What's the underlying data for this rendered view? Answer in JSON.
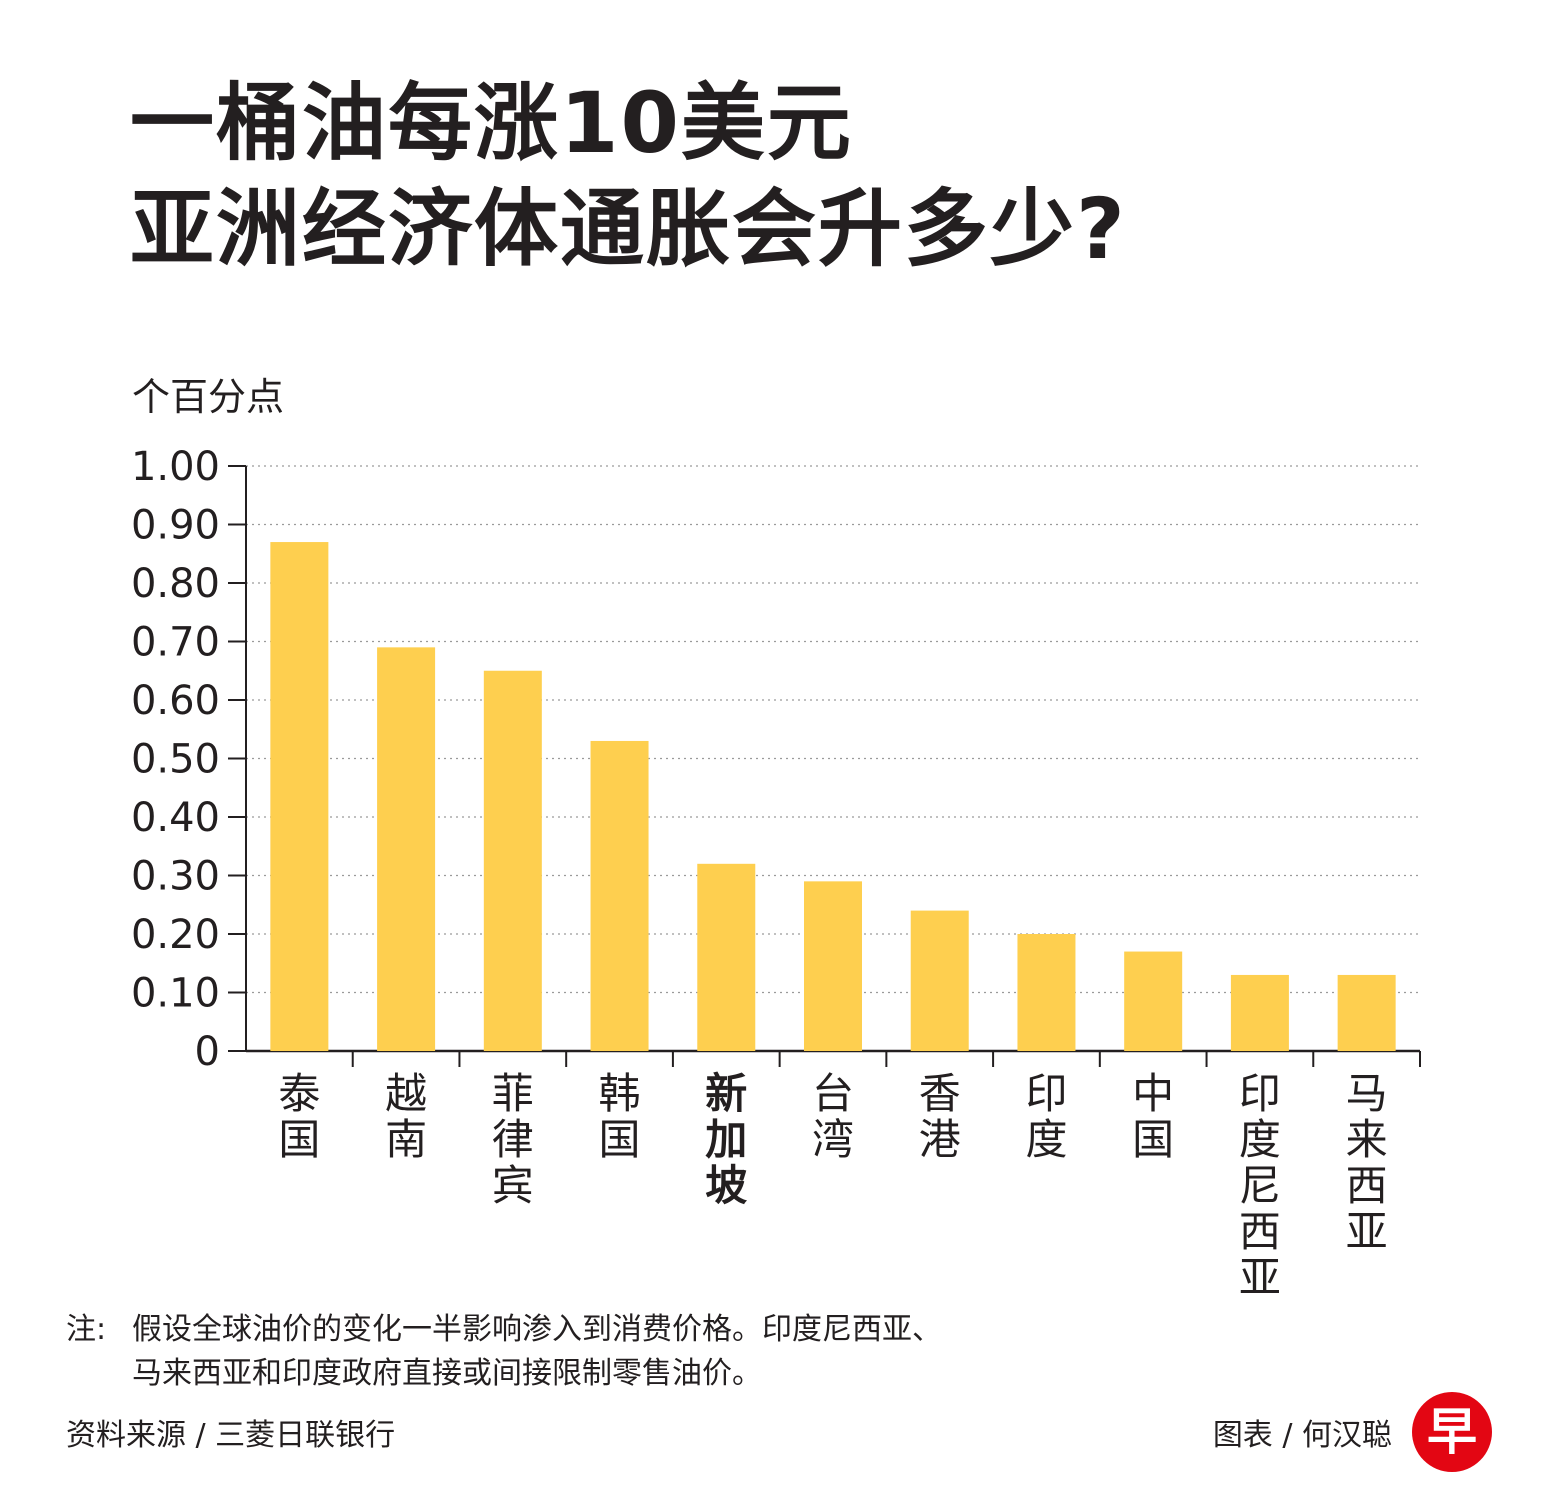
{
  "header": {
    "title_line1": "一桶油每涨10美元",
    "title_line2": "亚洲经济体通胀会升多少?"
  },
  "chart_data": {
    "type": "bar",
    "ylabel": "个百分点",
    "categories": [
      "泰国",
      "越南",
      "菲律宾",
      "韩国",
      "新加坡",
      "台湾",
      "香港",
      "印度",
      "中国",
      "印度尼西亚",
      "马来西亚"
    ],
    "values": [
      0.87,
      0.69,
      0.65,
      0.53,
      0.32,
      0.29,
      0.24,
      0.2,
      0.17,
      0.13,
      0.13
    ],
    "highlight": "新加坡",
    "ylim": [
      0,
      1.0
    ],
    "yticks": [
      "0",
      "0.10",
      "0.20",
      "0.30",
      "0.40",
      "0.50",
      "0.60",
      "0.70",
      "0.80",
      "0.90",
      "1.00"
    ],
    "grid": true,
    "bar_color": "#fecf4f"
  },
  "footer": {
    "note_label": "注:",
    "note_line1": "假设全球油价的变化一半影响渗入到消费价格。印度尼西亚、",
    "note_line2": "马来西亚和印度政府直接或间接限制零售油价。",
    "source": "资料来源 / 三菱日联银行",
    "credit": "图表 / 何汉聪",
    "logo": "早"
  },
  "colors": {
    "logo": "#e30613",
    "text": "#231f20"
  }
}
